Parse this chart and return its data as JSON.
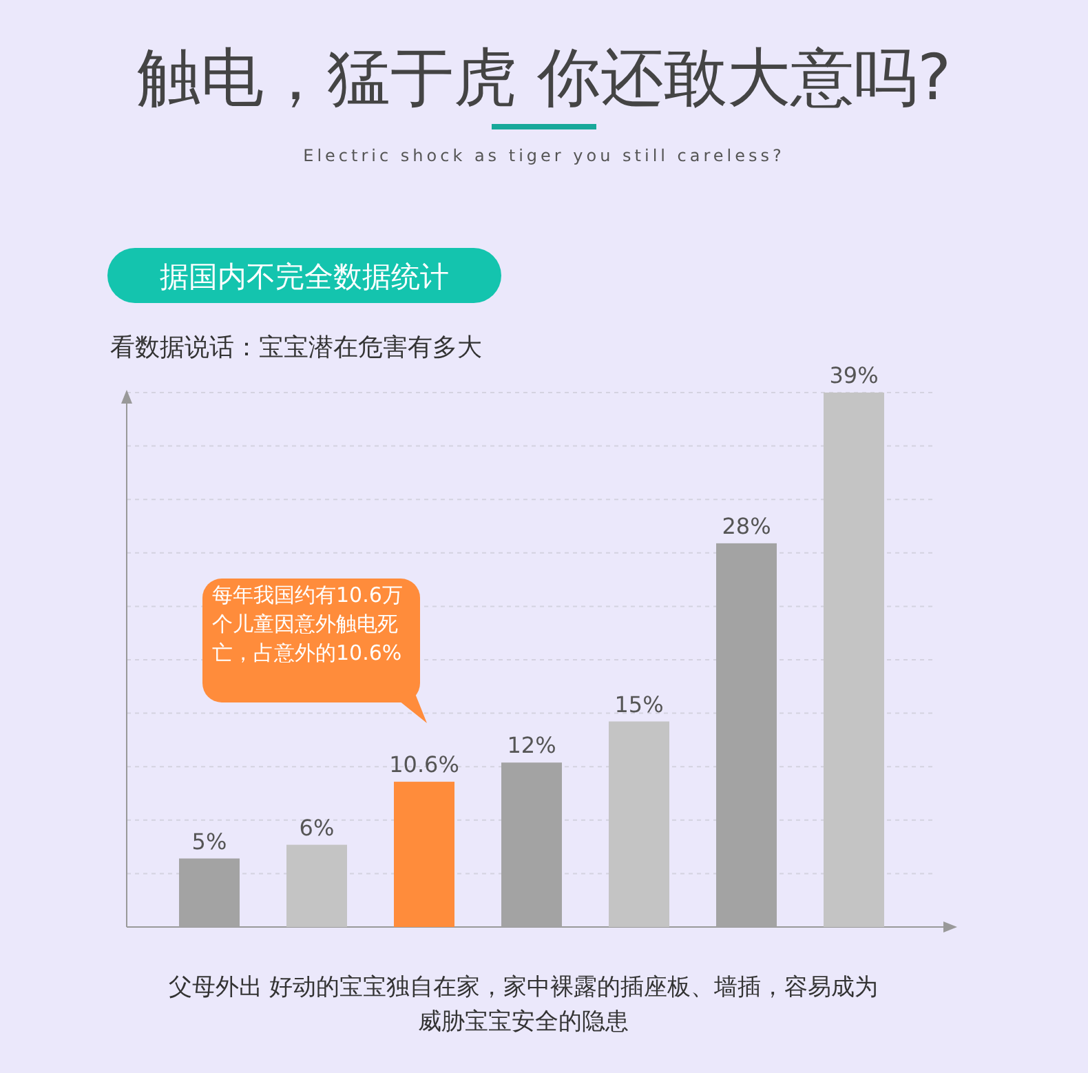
{
  "chart_data": {
    "type": "bar",
    "title": "触电，猛于虎 你还敢大意吗?",
    "subtitle": "Electric shock as tiger you still careless?",
    "categories": [
      null,
      null,
      null,
      null,
      null,
      null,
      null
    ],
    "values": [
      5,
      6,
      10.6,
      12,
      15,
      28,
      39
    ],
    "value_labels": [
      "5%",
      "6%",
      "10.6%",
      "12%",
      "15%",
      "28%",
      "39%"
    ],
    "colors": [
      "#a3a3a3",
      "#c4c4c4",
      "#ff8c3b",
      "#a3a3a3",
      "#c4c4c4",
      "#a3a3a3",
      "#c4c4c4"
    ],
    "grid": "y",
    "annotations": [
      "据国内不完全数据统计",
      "看数据说话：宝宝潜在危害有多大",
      "每年我国约有10.6万个儿童因意外触电死亡，占意外的10.6%",
      "父母外出 好动的宝宝独自在家，家中裸露的插座板、墙插，容易成为威胁宝宝安全的隐患"
    ]
  }
}
